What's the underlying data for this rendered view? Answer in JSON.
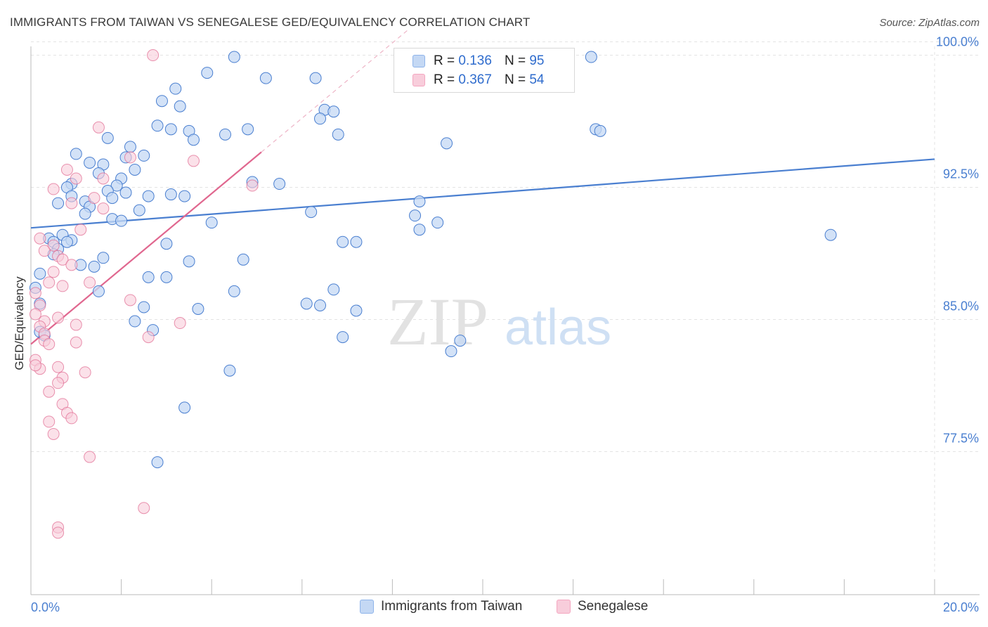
{
  "title": "IMMIGRANTS FROM TAIWAN VS SENEGALESE GED/EQUIVALENCY CORRELATION CHART",
  "source": "Source: ZipAtlas.com",
  "watermark": {
    "zip": "ZIP",
    "atlas": "atlas"
  },
  "legend": {
    "rows": [
      {
        "r_label": "R =",
        "r_value": "0.136",
        "n_label": "N =",
        "n_value": "95",
        "color": "#8fb4ea"
      },
      {
        "r_label": "R =",
        "r_value": "0.367",
        "n_label": "N =",
        "n_value": "54",
        "color": "#f4a7c0"
      }
    ]
  },
  "bottom_legend": {
    "taiwan": "Immigrants from Taiwan",
    "senegalese": "Senegalese"
  },
  "chart_data": {
    "type": "scatter",
    "title": "IMMIGRANTS FROM TAIWAN VS SENEGALESE GED/EQUIVALENCY CORRELATION CHART",
    "xlabel": "",
    "ylabel": "GED/Equivalency",
    "xlim": [
      0,
      20
    ],
    "ylim": [
      70.5,
      100.5
    ],
    "x_tick_labels": [
      "0.0%",
      "20.0%"
    ],
    "y_ticks": [
      77.5,
      85.0,
      92.5,
      100.0
    ],
    "y_tick_labels": [
      "77.5%",
      "85.0%",
      "92.5%",
      "100.0%"
    ],
    "grid": true,
    "legend_position": "top-center",
    "colors": {
      "taiwan": "#4a7fd0",
      "taiwan_fill": "#c4d8f4",
      "senegalese": "#e0678f",
      "senegalese_fill": "#f8cddb"
    },
    "series": [
      {
        "name": "Immigrants from Taiwan",
        "trend": {
          "x": [
            0.0,
            20.0
          ],
          "y": [
            90.2,
            94.1
          ]
        },
        "points": [
          [
            4.5,
            99.9
          ],
          [
            12.4,
            99.9
          ],
          [
            3.9,
            99.0
          ],
          [
            5.2,
            98.7
          ],
          [
            6.3,
            98.7
          ],
          [
            3.2,
            98.1
          ],
          [
            2.9,
            97.4
          ],
          [
            3.3,
            97.1
          ],
          [
            6.5,
            96.9
          ],
          [
            6.7,
            96.8
          ],
          [
            6.4,
            96.4
          ],
          [
            2.8,
            96.0
          ],
          [
            3.1,
            95.8
          ],
          [
            3.5,
            95.7
          ],
          [
            4.8,
            95.8
          ],
          [
            12.5,
            95.8
          ],
          [
            12.6,
            95.7
          ],
          [
            4.3,
            95.5
          ],
          [
            6.8,
            95.5
          ],
          [
            1.7,
            95.3
          ],
          [
            3.6,
            95.2
          ],
          [
            9.2,
            95.0
          ],
          [
            2.2,
            94.8
          ],
          [
            1.0,
            94.4
          ],
          [
            2.5,
            94.3
          ],
          [
            2.1,
            94.2
          ],
          [
            1.3,
            93.9
          ],
          [
            1.6,
            93.8
          ],
          [
            1.5,
            93.3
          ],
          [
            2.3,
            93.5
          ],
          [
            2.0,
            93.0
          ],
          [
            4.9,
            92.8
          ],
          [
            5.5,
            92.7
          ],
          [
            0.9,
            92.7
          ],
          [
            0.8,
            92.5
          ],
          [
            1.9,
            92.6
          ],
          [
            1.7,
            92.3
          ],
          [
            2.1,
            92.2
          ],
          [
            2.6,
            92.0
          ],
          [
            3.1,
            92.1
          ],
          [
            3.4,
            92.0
          ],
          [
            0.9,
            92.0
          ],
          [
            1.2,
            91.7
          ],
          [
            8.6,
            91.7
          ],
          [
            1.8,
            91.9
          ],
          [
            0.6,
            91.6
          ],
          [
            1.3,
            91.4
          ],
          [
            2.4,
            91.2
          ],
          [
            6.2,
            91.1
          ],
          [
            1.2,
            91.0
          ],
          [
            8.5,
            90.9
          ],
          [
            1.8,
            90.7
          ],
          [
            2.0,
            90.6
          ],
          [
            4.0,
            90.5
          ],
          [
            9.0,
            90.5
          ],
          [
            8.6,
            90.1
          ],
          [
            17.7,
            89.8
          ],
          [
            0.7,
            89.8
          ],
          [
            0.4,
            89.6
          ],
          [
            0.9,
            89.5
          ],
          [
            0.8,
            89.4
          ],
          [
            0.5,
            89.4
          ],
          [
            6.9,
            89.4
          ],
          [
            7.2,
            89.4
          ],
          [
            3.0,
            89.3
          ],
          [
            0.6,
            89.0
          ],
          [
            0.5,
            88.7
          ],
          [
            1.6,
            88.5
          ],
          [
            4.7,
            88.4
          ],
          [
            3.5,
            88.3
          ],
          [
            1.1,
            88.1
          ],
          [
            1.4,
            88.0
          ],
          [
            0.2,
            87.6
          ],
          [
            2.6,
            87.4
          ],
          [
            3.0,
            87.4
          ],
          [
            0.1,
            86.8
          ],
          [
            1.5,
            86.6
          ],
          [
            4.5,
            86.6
          ],
          [
            6.7,
            86.7
          ],
          [
            0.2,
            85.9
          ],
          [
            6.1,
            85.9
          ],
          [
            6.4,
            85.8
          ],
          [
            2.5,
            85.7
          ],
          [
            3.7,
            85.6
          ],
          [
            7.2,
            85.5
          ],
          [
            2.3,
            84.9
          ],
          [
            0.2,
            84.3
          ],
          [
            2.7,
            84.4
          ],
          [
            0.3,
            84.1
          ],
          [
            6.9,
            84.0
          ],
          [
            9.5,
            83.8
          ],
          [
            9.3,
            83.2
          ],
          [
            4.4,
            82.1
          ],
          [
            3.4,
            80.0
          ],
          [
            2.8,
            76.9
          ]
        ]
      },
      {
        "name": "Senegalese",
        "trend": {
          "x": [
            0.0,
            5.1
          ],
          "y": [
            83.6,
            94.5
          ]
        },
        "points": [
          [
            2.7,
            100.0
          ],
          [
            1.5,
            95.9
          ],
          [
            2.2,
            94.2
          ],
          [
            3.6,
            94.0
          ],
          [
            0.8,
            93.5
          ],
          [
            1.0,
            93.0
          ],
          [
            1.6,
            93.0
          ],
          [
            0.5,
            92.4
          ],
          [
            4.9,
            92.6
          ],
          [
            1.4,
            91.9
          ],
          [
            0.9,
            91.6
          ],
          [
            1.6,
            91.3
          ],
          [
            1.1,
            90.1
          ],
          [
            0.2,
            89.6
          ],
          [
            0.5,
            89.2
          ],
          [
            0.3,
            88.9
          ],
          [
            0.6,
            88.6
          ],
          [
            0.7,
            88.4
          ],
          [
            0.9,
            88.1
          ],
          [
            0.5,
            87.7
          ],
          [
            1.3,
            87.1
          ],
          [
            0.4,
            87.1
          ],
          [
            0.7,
            86.9
          ],
          [
            0.1,
            86.5
          ],
          [
            2.2,
            86.1
          ],
          [
            0.2,
            85.8
          ],
          [
            0.1,
            85.3
          ],
          [
            0.6,
            85.1
          ],
          [
            0.3,
            84.9
          ],
          [
            1.0,
            84.7
          ],
          [
            3.3,
            84.8
          ],
          [
            0.2,
            84.6
          ],
          [
            0.3,
            84.2
          ],
          [
            2.6,
            84.0
          ],
          [
            0.3,
            83.8
          ],
          [
            0.4,
            83.6
          ],
          [
            1.0,
            83.7
          ],
          [
            0.1,
            82.7
          ],
          [
            0.2,
            82.2
          ],
          [
            0.6,
            82.3
          ],
          [
            0.7,
            81.7
          ],
          [
            1.2,
            82.0
          ],
          [
            0.6,
            81.4
          ],
          [
            0.4,
            80.9
          ],
          [
            0.7,
            80.2
          ],
          [
            0.8,
            79.7
          ],
          [
            0.9,
            79.4
          ],
          [
            0.4,
            79.2
          ],
          [
            0.5,
            78.5
          ],
          [
            1.3,
            77.2
          ],
          [
            2.5,
            74.3
          ],
          [
            0.6,
            73.2
          ],
          [
            0.6,
            72.9
          ],
          [
            0.1,
            82.4
          ]
        ]
      }
    ]
  }
}
